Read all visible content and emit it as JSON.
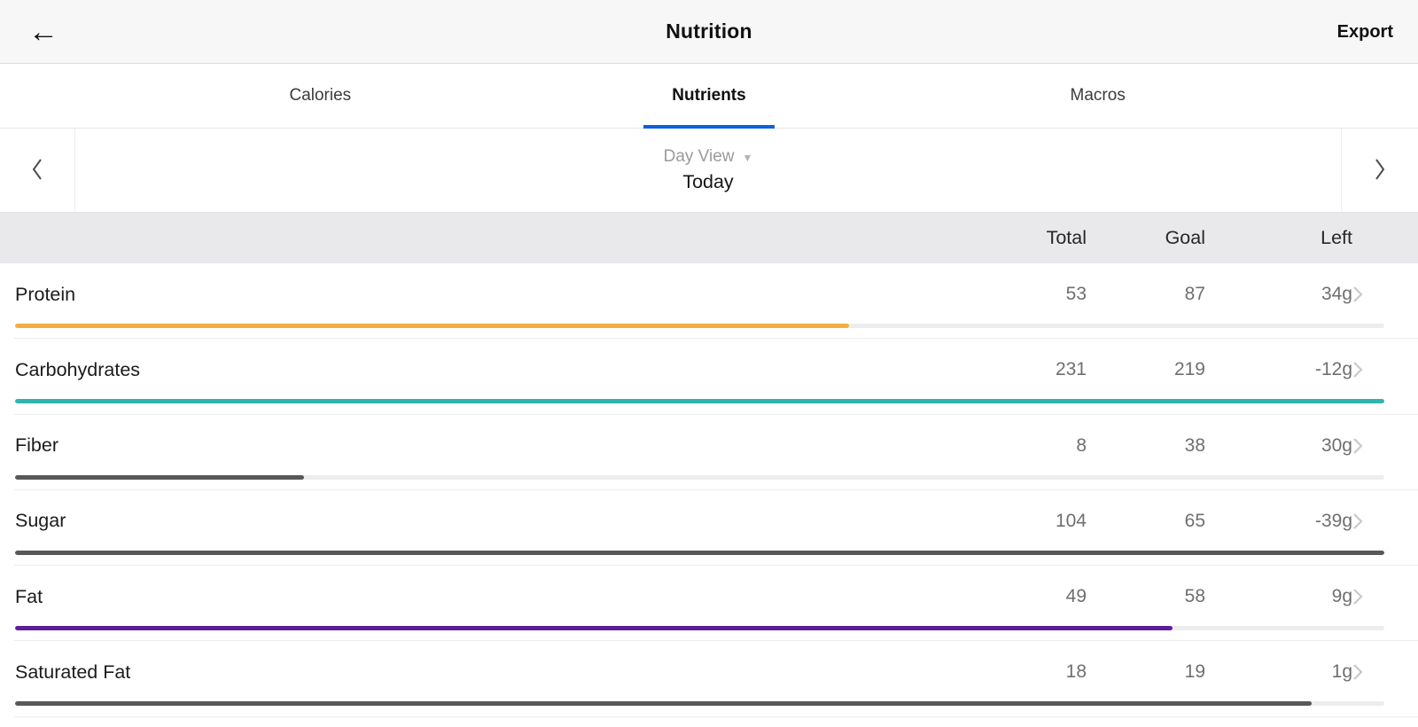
{
  "header": {
    "title": "Nutrition",
    "export_label": "Export"
  },
  "tabs": [
    {
      "label": "Calories",
      "active": false
    },
    {
      "label": "Nutrients",
      "active": true
    },
    {
      "label": "Macros",
      "active": false
    }
  ],
  "day_selector": {
    "view_label": "Day View",
    "date_label": "Today"
  },
  "table": {
    "columns": [
      "Total",
      "Goal",
      "Left"
    ],
    "rows": [
      {
        "name": "Protein",
        "total": 53,
        "goal": 87,
        "left": "34g",
        "bar_color": "#f2ae43"
      },
      {
        "name": "Carbohydrates",
        "total": 231,
        "goal": 219,
        "left": "-12g",
        "bar_color": "#2fb5ad"
      },
      {
        "name": "Fiber",
        "total": 8,
        "goal": 38,
        "left": "30g",
        "bar_color": "#58585a"
      },
      {
        "name": "Sugar",
        "total": 104,
        "goal": 65,
        "left": "-39g",
        "bar_color": "#58585a"
      },
      {
        "name": "Fat",
        "total": 49,
        "goal": 58,
        "left": "9g",
        "bar_color": "#5e1d9c"
      },
      {
        "name": "Saturated Fat",
        "total": 18,
        "goal": 19,
        "left": "1g",
        "bar_color": "#58585a"
      }
    ]
  },
  "colors": {
    "accent_tab": "#0a60dd",
    "track": "#ededed",
    "header_bg": "#f7f7f8",
    "colhead_bg": "#e9e9ec"
  }
}
